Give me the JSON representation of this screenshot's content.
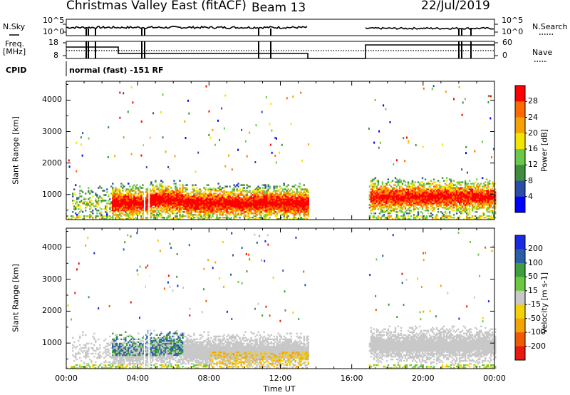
{
  "header": {
    "station": "Christmas Valley East (fitACF)",
    "beam": "Beam 13",
    "date": "22/Jul/2019"
  },
  "strip_labels": {
    "nsky": "N.Sky",
    "nsearch": "N.Search",
    "freq": "Freq.",
    "freq_unit": "[MHz]",
    "nave": "Nave",
    "cpid": "CPID",
    "cpid_value": "normal (fast) -151 RF",
    "nsky_ticks": [
      "10^5",
      "10^0"
    ],
    "nsearch_ticks": [
      "10^5",
      "10^0"
    ],
    "freq_ticks": [
      "18",
      "8"
    ],
    "nave_ticks": [
      "60",
      "0"
    ]
  },
  "colors": {
    "power": [
      "#0000ff",
      "#2a4ea8",
      "#3f8e3f",
      "#69c94a",
      "#f2e600",
      "#f5a300",
      "#ff6a00",
      "#ff0000"
    ],
    "velocity": [
      "#e81a10",
      "#f05a00",
      "#f5a300",
      "#f2d200",
      "#c8c8c8",
      "#6cc840",
      "#3f9e3f",
      "#2a5ea8",
      "#1a2ae0"
    ]
  },
  "chart_data": [
    {
      "type": "heatmap",
      "name": "power",
      "ylabel": "Slant Range [km]",
      "yticks": [
        "1000",
        "2000",
        "3000",
        "4000"
      ],
      "ylim": [
        200,
        4600
      ],
      "xticks": [
        "00:00",
        "04:00",
        "08:00",
        "12:00",
        "16:00",
        "20:00",
        "00:00"
      ],
      "xlim_hours": [
        0,
        24
      ],
      "colorbar": {
        "label": "Power [dB]",
        "ticks": [
          "4",
          "8",
          "12",
          "16",
          "20",
          "24",
          "28"
        ],
        "range": [
          0,
          32
        ]
      },
      "data_gaps_hours": [
        [
          13.6,
          16.9
        ]
      ]
    },
    {
      "type": "heatmap",
      "name": "velocity",
      "ylabel": "Slant Range [km]",
      "yticks": [
        "1000",
        "2000",
        "3000",
        "4000"
      ],
      "ylim": [
        200,
        4600
      ],
      "xticks": [
        "00:00",
        "04:00",
        "08:00",
        "12:00",
        "16:00",
        "20:00",
        "00:00"
      ],
      "xlabel": "Time UT",
      "colorbar": {
        "label": "Velocity [m s-1]",
        "ticks": [
          "200",
          "100",
          "50",
          "15",
          "-15",
          "-50",
          "-100",
          "-200"
        ]
      },
      "data_gaps_hours": [
        [
          13.6,
          16.9
        ]
      ]
    }
  ]
}
